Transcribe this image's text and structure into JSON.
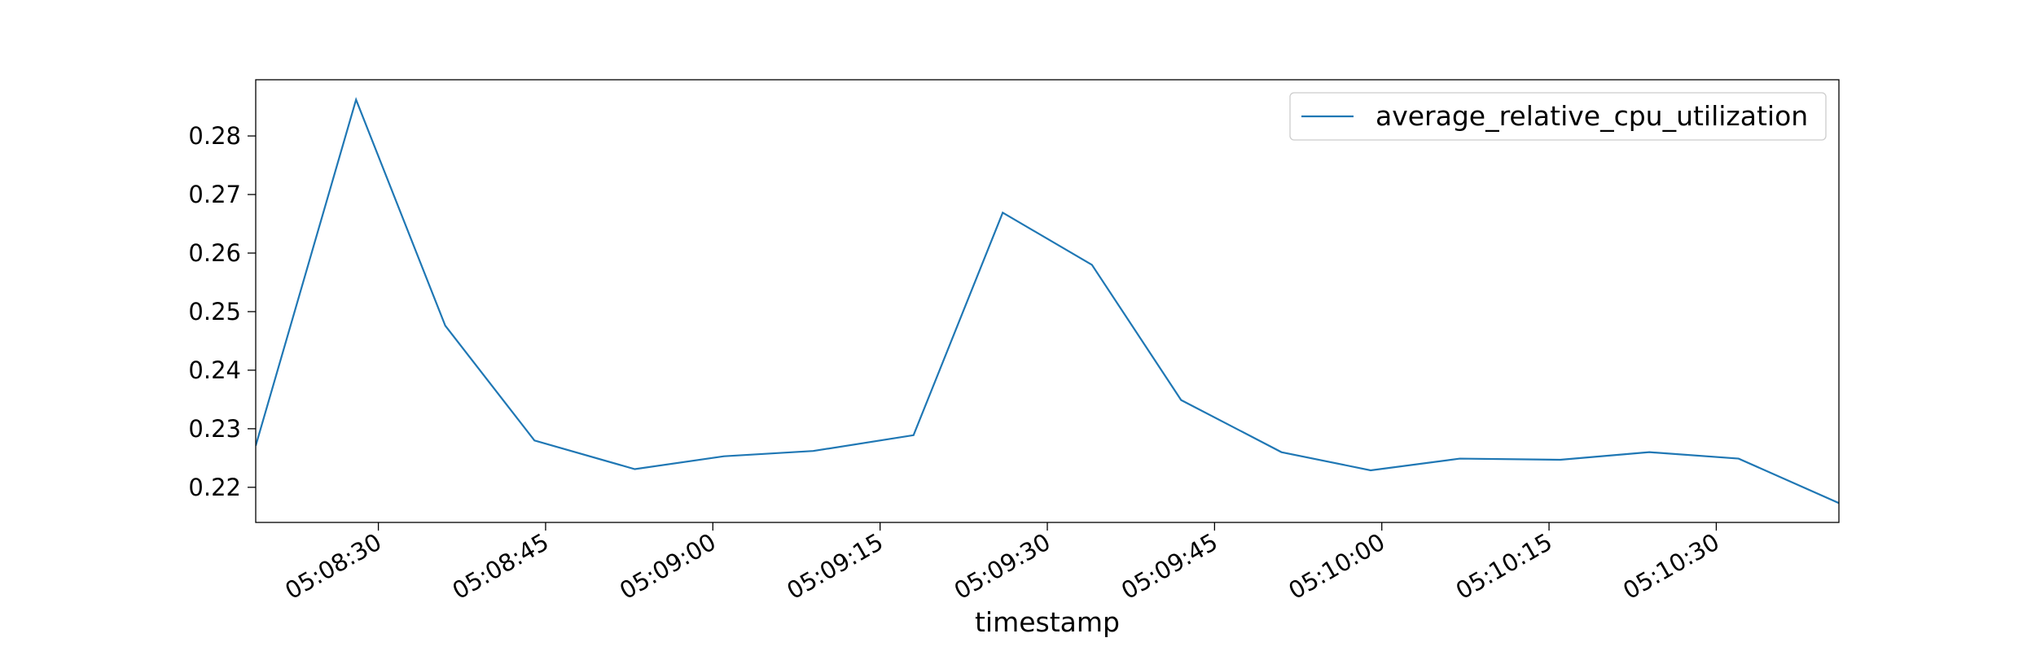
{
  "chart_data": {
    "type": "line",
    "xlabel": "timestamp",
    "x": [
      "05:08:19",
      "05:08:28",
      "05:08:36",
      "05:08:44",
      "05:08:53",
      "05:09:01",
      "05:09:09",
      "05:09:18",
      "05:09:26",
      "05:09:34",
      "05:09:42",
      "05:09:51",
      "05:09:59",
      "05:10:07",
      "05:10:16",
      "05:10:24",
      "05:10:32",
      "05:10:41"
    ],
    "series": [
      {
        "name": "average_relative_cpu_utilization",
        "color": "#1f77b4",
        "values": [
          0.2271,
          0.2862,
          0.2476,
          0.228,
          0.2231,
          0.2253,
          0.2262,
          0.2289,
          0.2669,
          0.258,
          0.2349,
          0.226,
          0.2229,
          0.2249,
          0.2247,
          0.226,
          0.2249,
          0.2173
        ]
      }
    ],
    "xlim": [
      "05:08:19",
      "05:10:41"
    ],
    "xticks": [
      "05:08:30",
      "05:08:45",
      "05:09:00",
      "05:09:15",
      "05:09:30",
      "05:09:45",
      "05:10:00",
      "05:10:15",
      "05:10:30"
    ],
    "ylim": [
      0.214,
      0.2896
    ],
    "yticks": [
      0.22,
      0.23,
      0.24,
      0.25,
      0.26,
      0.27,
      0.28
    ],
    "legend": "upper right"
  }
}
